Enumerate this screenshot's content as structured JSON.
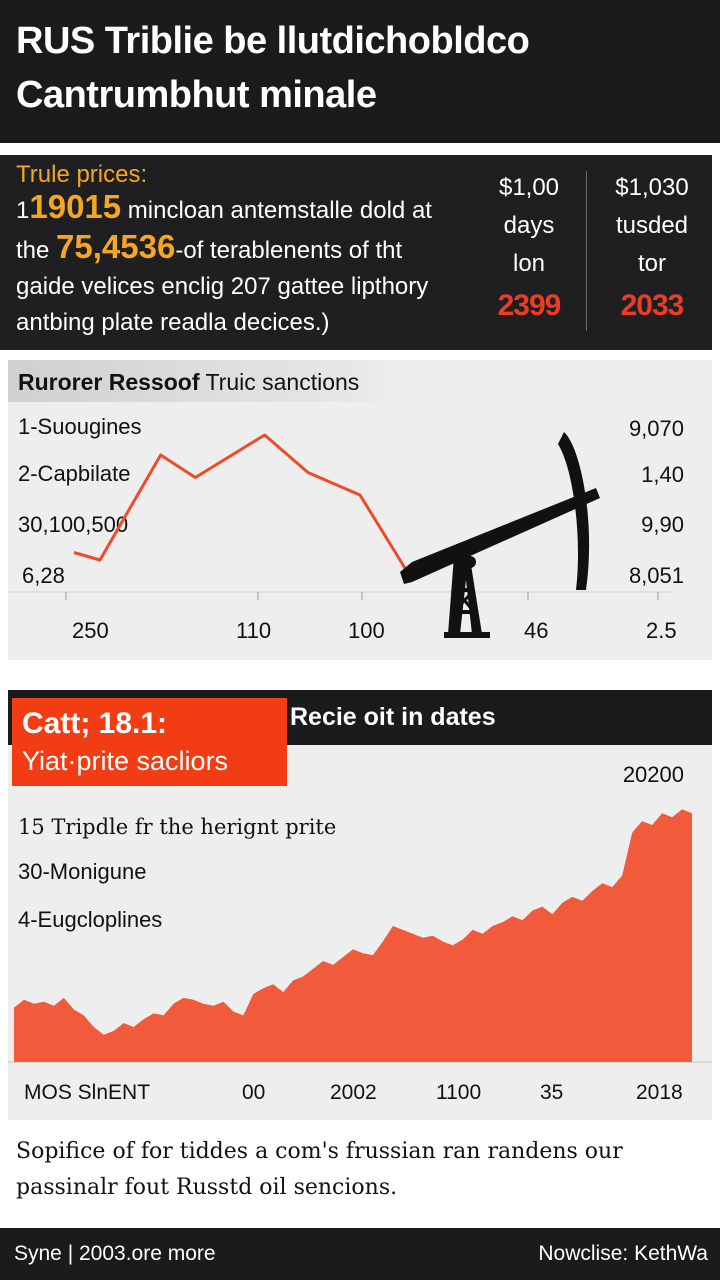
{
  "header": {
    "line1": "RUS Triblie be llutdichobldco",
    "line2": "Cantrumbhut minale"
  },
  "stats": {
    "label": "Trule prices:",
    "row1_prefix": "1",
    "row1_highlight": "19015",
    "row1_text": " mincloan antemstalle dold at",
    "row2_prefix": "the ",
    "row2_highlight": "75,4536",
    "row2_text": "-of terablenents of tht",
    "row3": "gaide velices enclig 207 gattee lipthory",
    "row4": "antbing plate readla decices.)",
    "col1": {
      "value": "$1,00",
      "line2": "days",
      "line3": "lon",
      "big": "2399"
    },
    "col2": {
      "value": "$1,030",
      "line2": "tusded",
      "line3": "tor",
      "big": "2033"
    },
    "colors": {
      "accent": "#f5a623",
      "red": "#ee3b23",
      "dark": "#1f1f21"
    }
  },
  "chart_data": [
    {
      "type": "line",
      "title": "Rurorer Ressoof",
      "title_light": " Truic sanctions",
      "left_labels": [
        "1-Suougines",
        "2-Capbilate",
        "30,100,500",
        "6,28"
      ],
      "right_labels": [
        "9,070",
        "1,40",
        "9,90",
        "8,051"
      ],
      "x_labels": [
        "250",
        "110",
        "100",
        "46",
        "2.5"
      ],
      "icon": "oil-pumpjack-icon",
      "series": [
        {
          "color": "#ee4b2b",
          "points": [
            {
              "x": 0,
              "y": 6.1
            },
            {
              "x": 0.3,
              "y": 6.4
            },
            {
              "x": 1,
              "y": 2.2
            },
            {
              "x": 1.4,
              "y": 3.1
            },
            {
              "x": 2.2,
              "y": 1.4
            },
            {
              "x": 2.7,
              "y": 2.9
            },
            {
              "x": 3.3,
              "y": 3.8
            },
            {
              "x": 3.85,
              "y": 6.9
            },
            {
              "x": 4.2,
              "y": 6.6
            }
          ]
        }
      ],
      "ylim": [
        0,
        8
      ],
      "xlim": [
        0,
        6.2
      ]
    },
    {
      "type": "area",
      "badge_line1": "Catt; 18.1:",
      "badge_line2": "Yiat·prite sacliors",
      "title": "Recie oit in dates",
      "top_right_label": "20200",
      "left_labels": [
        "15 Tripdle fr the herignt prite",
        "30-Monigune",
        "4-Eugcloplines"
      ],
      "x_labels": [
        "MOS SlnENT",
        "00",
        "2002",
        "1100",
        "35",
        "2018"
      ],
      "color": "#f15a3a",
      "values": [
        28,
        32,
        30,
        31,
        29,
        33,
        27,
        24,
        18,
        14,
        16,
        20,
        18,
        22,
        25,
        24,
        30,
        33,
        32,
        30,
        29,
        31,
        26,
        24,
        35,
        38,
        40,
        36,
        42,
        44,
        48,
        52,
        50,
        54,
        58,
        56,
        55,
        62,
        70,
        68,
        66,
        64,
        65,
        62,
        60,
        63,
        68,
        66,
        70,
        72,
        75,
        73,
        78,
        80,
        76,
        82,
        85,
        83,
        88,
        92,
        90,
        96,
        118,
        124,
        122,
        128,
        126,
        130,
        128
      ],
      "ylim": [
        0,
        140
      ]
    }
  ],
  "caption": "Sopifice of for tiddes a com's frussian ran randens our passinalr fout Russtd oil sencions.",
  "footer": {
    "left": "Syne | 2003.ore more",
    "right": "Nowclise: KethWa"
  }
}
